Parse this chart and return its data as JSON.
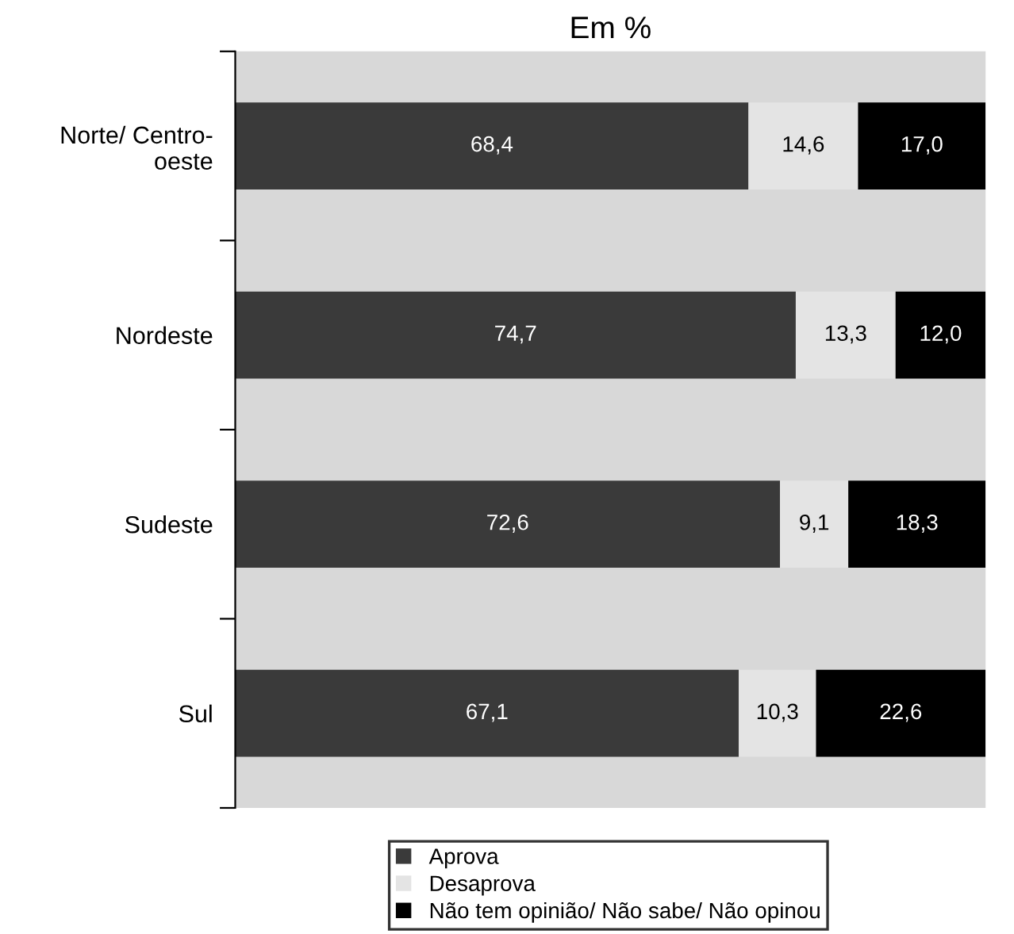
{
  "chart_data": {
    "type": "bar",
    "orientation": "horizontal",
    "stacked": true,
    "title": "Em %",
    "categories": [
      "Norte/ Centro-\noeste",
      "Nordeste",
      "Sudeste",
      "Sul"
    ],
    "series": [
      {
        "name": "Aprova",
        "color": "#3a3a3a",
        "values": [
          68.4,
          74.7,
          72.6,
          67.1
        ],
        "value_labels": [
          "68,4",
          "74,7",
          "72,6",
          "67,1"
        ]
      },
      {
        "name": "Desaprova",
        "color": "#e4e4e4",
        "values": [
          14.6,
          13.3,
          9.1,
          10.3
        ],
        "value_labels": [
          "14,6",
          "13,3",
          "9,1",
          "10,3"
        ]
      },
      {
        "name": "Não tem opinião/ Não sabe/ Não opinou",
        "color": "#000000",
        "values": [
          17.0,
          12.0,
          18.3,
          22.6
        ],
        "value_labels": [
          "17,0",
          "12,0",
          "18,3",
          "22,6"
        ]
      }
    ],
    "legend": "bottom",
    "grid": false
  }
}
